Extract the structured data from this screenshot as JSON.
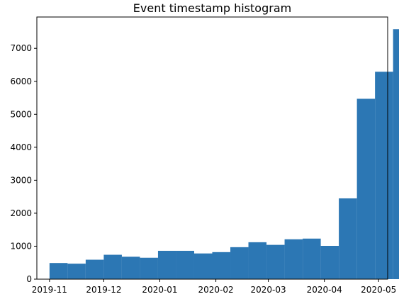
{
  "chart_data": {
    "type": "bar",
    "title": "Event timestamp histogram",
    "xlabel": "",
    "ylabel": "",
    "x_type": "date",
    "xlim": [
      "2019-10-25",
      "2020-05-06"
    ],
    "ylim": [
      0,
      7950
    ],
    "bar_color": "#2c77b4",
    "grid": false,
    "legend": "none",
    "x_ticks": [
      "2019-11",
      "2019-12",
      "2020-01",
      "2020-02",
      "2020-03",
      "2020-04",
      "2020-05"
    ],
    "y_ticks": [
      0,
      1000,
      2000,
      3000,
      4000,
      5000,
      6000,
      7000
    ],
    "bin_edges": [
      "2019-11-01",
      "2019-11-11",
      "2019-11-21",
      "2019-12-01",
      "2019-12-11",
      "2019-12-21",
      "2019-12-31",
      "2020-01-10",
      "2020-01-20",
      "2020-01-30",
      "2020-02-09",
      "2020-02-19",
      "2020-02-29",
      "2020-03-10",
      "2020-03-20",
      "2020-03-30",
      "2020-04-09",
      "2020-04-19",
      "2020-04-29",
      "2020-05-09",
      "2020-05-19"
    ],
    "values": [
      490,
      470,
      590,
      740,
      680,
      650,
      860,
      860,
      780,
      820,
      970,
      1120,
      1040,
      1210,
      1230,
      1010,
      2450,
      5470,
      6290,
      7580
    ]
  }
}
